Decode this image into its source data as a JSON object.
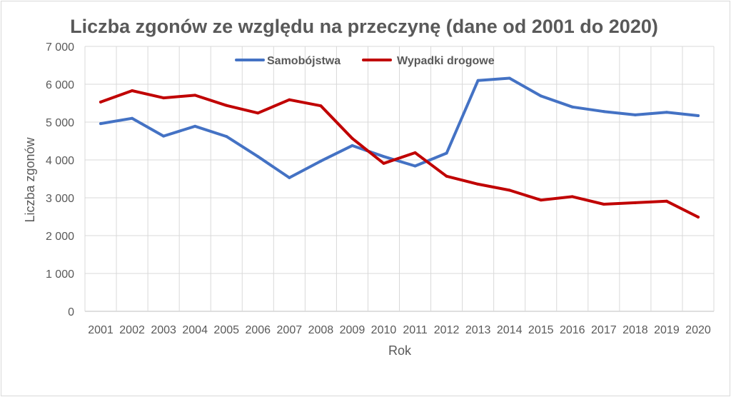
{
  "chart_data": {
    "type": "line",
    "title": "Liczba zgonów ze względu na przeczynę (dane od 2001 do 2020)",
    "xlabel": "Rok",
    "ylabel": "Liczba zgonów",
    "ylim": [
      0,
      7000
    ],
    "y_ticks": [
      0,
      1000,
      2000,
      3000,
      4000,
      5000,
      6000,
      7000
    ],
    "y_tick_labels": [
      "0",
      "1 000",
      "2 000",
      "3 000",
      "4 000",
      "5 000",
      "6 000",
      "7 000"
    ],
    "grid": true,
    "legend_position": "top",
    "categories": [
      "2001",
      "2002",
      "2003",
      "2004",
      "2005",
      "2006",
      "2007",
      "2008",
      "2009",
      "2010",
      "2011",
      "2012",
      "2013",
      "2014",
      "2015",
      "2016",
      "2017",
      "2018",
      "2019",
      "2020"
    ],
    "series": [
      {
        "name": "Samobójstwa",
        "color": "#4472C4",
        "values": [
          4960,
          5100,
          4630,
          4890,
          4620,
          4090,
          3530,
          3970,
          4380,
          4090,
          3840,
          4180,
          6100,
          6160,
          5690,
          5400,
          5280,
          5190,
          5260,
          5170
        ]
      },
      {
        "name": "Wypadki drogowe",
        "color": "#C00000",
        "values": [
          5530,
          5830,
          5640,
          5710,
          5440,
          5240,
          5590,
          5430,
          4570,
          3910,
          4190,
          3570,
          3360,
          3200,
          2940,
          3030,
          2830,
          2870,
          2910,
          2490
        ]
      }
    ]
  }
}
